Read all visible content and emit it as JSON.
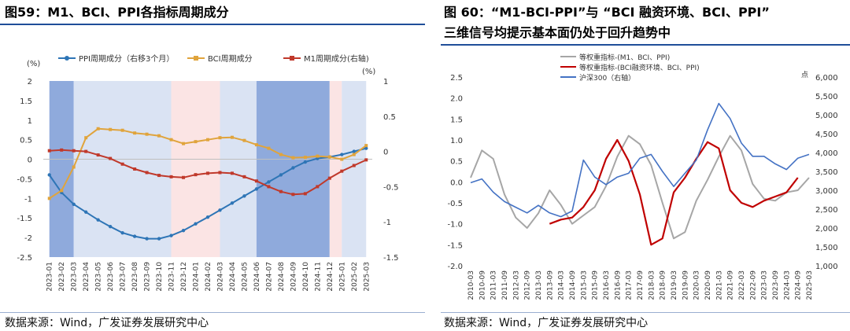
{
  "left": {
    "title": "图59：M1、BCI、PPI各指标周期成分",
    "source": "数据来源：Wind，广发证券发展研究中心"
  },
  "right": {
    "title_line1": "图 60：“M1-BCI-PPI”与 “BCI 融资环境、BCI、PPI”",
    "title_line2": "三维信号均提示基本面仍处于回升趋势中",
    "source": "数据来源：Wind，广发证券发展研究中心"
  },
  "colors": {
    "ppi": "#2e75b6",
    "bci": "#e0a43c",
    "m1": "#c0392b",
    "dark_band": "#8faadc",
    "light_band": "#dae3f3",
    "pink_band": "#fbe4e4",
    "gray_line": "#a6a6a6",
    "red_line": "#c00000",
    "blue_line": "#4472c4",
    "title_rule": "#1f4e99"
  },
  "chart_data": [
    {
      "type": "line",
      "legend_position": "top",
      "left_axis_unit": "(%)",
      "right_axis_unit": "(%)",
      "categories": [
        "2023-01",
        "2023-02",
        "2023-03",
        "2023-04",
        "2023-05",
        "2023-06",
        "2023-07",
        "2023-08",
        "2023-09",
        "2023-10",
        "2023-11",
        "2023-12",
        "2024-01",
        "2024-02",
        "2024-03",
        "2024-04",
        "2024-05",
        "2024-06",
        "2024-07",
        "2024-08",
        "2024-09",
        "2024-10",
        "2024-11",
        "2024-12",
        "2025-01",
        "2025-02",
        "2025-03"
      ],
      "left_ylim": [
        -2.5,
        2
      ],
      "left_yticks": [
        2,
        1.5,
        1,
        0.5,
        0,
        -0.5,
        -1,
        -1.5,
        -2,
        -2.5
      ],
      "right_ylim": [
        -1.5,
        1
      ],
      "right_yticks": [
        1,
        0.5,
        0,
        -0.5,
        -1,
        -1.5
      ],
      "bands": [
        {
          "from": 0,
          "to": 2,
          "style": "dark"
        },
        {
          "from": 2,
          "to": 10,
          "style": "light"
        },
        {
          "from": 10,
          "to": 14,
          "style": "pink"
        },
        {
          "from": 14,
          "to": 17,
          "style": "light"
        },
        {
          "from": 17,
          "to": 23,
          "style": "dark"
        },
        {
          "from": 23,
          "to": 24,
          "style": "pink"
        },
        {
          "from": 24,
          "to": 26,
          "style": "light"
        }
      ],
      "series": [
        {
          "name": "PPI周期成分（右移3个月）",
          "axis": "left",
          "color_key": "ppi",
          "values": [
            -0.4,
            -0.85,
            -1.15,
            -1.35,
            -1.55,
            -1.72,
            -1.88,
            -1.97,
            -2.03,
            -2.03,
            -1.95,
            -1.82,
            -1.65,
            -1.48,
            -1.3,
            -1.12,
            -0.94,
            -0.76,
            -0.58,
            -0.4,
            -0.22,
            -0.07,
            0.02,
            0.06,
            0.12,
            0.2,
            0.28
          ]
        },
        {
          "name": "BCI周期成分",
          "axis": "left",
          "color_key": "bci",
          "values": [
            -1.0,
            -0.8,
            -0.2,
            0.55,
            0.78,
            0.76,
            0.74,
            0.67,
            0.64,
            0.6,
            0.5,
            0.4,
            0.45,
            0.5,
            0.55,
            0.56,
            0.48,
            0.37,
            0.28,
            0.12,
            0.04,
            0.05,
            0.08,
            0.06,
            0.0,
            0.12,
            0.35
          ]
        },
        {
          "name": "M1周期成分(右轴)",
          "axis": "right",
          "color_key": "m1",
          "values": [
            0.01,
            0.02,
            0.01,
            0.0,
            -0.05,
            -0.1,
            -0.18,
            -0.25,
            -0.3,
            -0.34,
            -0.36,
            -0.37,
            -0.33,
            -0.31,
            -0.3,
            -0.31,
            -0.36,
            -0.42,
            -0.5,
            -0.57,
            -0.61,
            -0.6,
            -0.5,
            -0.38,
            -0.28,
            -0.2,
            -0.12
          ]
        }
      ]
    },
    {
      "type": "line",
      "legend_position": "top-left",
      "left_ylim": [
        -2,
        2.5
      ],
      "left_yticks": [
        2.5,
        2.0,
        1.5,
        1.0,
        0.5,
        0.0,
        -0.5,
        -1.0,
        -1.5,
        -2.0
      ],
      "right_axis_unit": "点",
      "right_ylim": [
        1000,
        6000
      ],
      "right_yticks": [
        "6,000",
        "5,500",
        "5,000",
        "4,500",
        "4,000",
        "3,500",
        "3,000",
        "2,500",
        "2,000",
        "1,500",
        "1,000"
      ],
      "x_start": "2010-03",
      "x_step_months": 6,
      "x_labels": [
        "2010-03",
        "2010-09",
        "2011-03",
        "2011-09",
        "2012-03",
        "2012-09",
        "2013-03",
        "2013-09",
        "2014-03",
        "2014-09",
        "2015-03",
        "2015-09",
        "2016-03",
        "2016-09",
        "2017-03",
        "2017-09",
        "2018-03",
        "2018-09",
        "2019-03",
        "2019-09",
        "2020-03",
        "2020-09",
        "2021-03",
        "2021-09",
        "2022-03",
        "2022-09",
        "2023-03",
        "2023-09",
        "2024-03",
        "2024-09",
        "2025-03"
      ],
      "series": [
        {
          "name": "等权重指标-(M1、BCI、PPI)",
          "axis": "left",
          "color_key": "gray_line",
          "values": [
            0.1,
            0.75,
            0.55,
            -0.3,
            -0.85,
            -1.1,
            -0.75,
            -0.2,
            -0.55,
            -1.0,
            -0.8,
            -0.6,
            -0.1,
            0.6,
            1.1,
            0.9,
            0.4,
            -0.5,
            -1.35,
            -1.2,
            -0.45,
            0.05,
            0.6,
            1.1,
            0.75,
            -0.05,
            -0.4,
            -0.45,
            -0.25,
            -0.2,
            0.1
          ]
        },
        {
          "name": "等权重指标-(BCI融资环境、BCI、PPI)",
          "axis": "left",
          "color_key": "red_line",
          "start_index": 7,
          "values": [
            -1.0,
            -0.9,
            -0.85,
            -0.6,
            -0.2,
            0.55,
            1.0,
            0.5,
            -0.3,
            -1.5,
            -1.35,
            -0.25,
            0.1,
            0.55,
            0.95,
            0.8,
            -0.2,
            -0.5,
            -0.6,
            -0.45,
            -0.35,
            -0.25,
            0.1
          ]
        },
        {
          "name": "沪深300（右轴）",
          "axis": "right",
          "color_key": "blue_line",
          "values": [
            3200,
            3300,
            2950,
            2700,
            2550,
            2400,
            2600,
            2400,
            2300,
            2450,
            3800,
            3350,
            3150,
            3350,
            3450,
            3850,
            3950,
            3500,
            3100,
            3450,
            3800,
            4600,
            5300,
            4900,
            4250,
            3900,
            3900,
            3700,
            3550,
            3850,
            3950
          ]
        }
      ]
    }
  ]
}
